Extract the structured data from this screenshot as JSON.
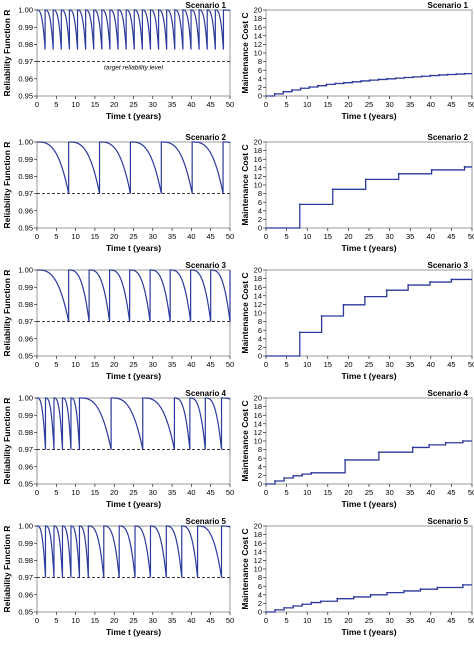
{
  "figure": {
    "reliability_ylabel": "Reliability Function R",
    "cost_ylabel": "Maintenance Cost  C",
    "xlabel": "Time t (years)",
    "annotation": "target reliability level",
    "line_color": "#2b3a9c"
  },
  "chart_data": [
    {
      "type": "line",
      "panel": "reliability",
      "title": "Scenario 1",
      "xlabel": "Time t (years)",
      "ylabel": "Reliability Function R",
      "xlim": [
        0,
        50
      ],
      "ylim": [
        0.95,
        1.0
      ],
      "xticks": [
        "0",
        "5",
        "10",
        "15",
        "20",
        "25",
        "30",
        "35",
        "40",
        "45",
        "50"
      ],
      "yticks": [
        "0.95",
        "0.96",
        "0.97",
        "0.98",
        "0.99",
        "1.00"
      ],
      "target": 0.97,
      "annotation": "target reliability level",
      "repair_times": [
        2.1,
        4.2,
        6.3,
        8.4,
        10.5,
        12.6,
        14.7,
        16.8,
        18.9,
        21.0,
        23.1,
        25.2,
        27.3,
        29.4,
        31.5,
        33.6,
        35.7,
        37.8,
        39.9,
        42.0,
        44.1,
        46.2,
        48.3
      ],
      "min_reliability": 0.977
    },
    {
      "type": "line",
      "panel": "cost",
      "title": "Scenario 1",
      "xlabel": "Time t (years)",
      "ylabel": "Maintenance Cost  C",
      "xlim": [
        0,
        50
      ],
      "ylim": [
        0,
        20
      ],
      "xticks": [
        "0",
        "5",
        "10",
        "15",
        "20",
        "25",
        "30",
        "35",
        "40",
        "45",
        "50"
      ],
      "yticks": [
        "0",
        "2",
        "4",
        "6",
        "8",
        "10",
        "12",
        "14",
        "16",
        "18",
        "20"
      ],
      "x": [
        2.1,
        4.2,
        6.3,
        8.4,
        10.5,
        12.6,
        14.7,
        16.8,
        18.9,
        21.0,
        23.1,
        25.2,
        27.3,
        29.4,
        31.5,
        33.6,
        35.7,
        37.8,
        39.9,
        42.0,
        44.1,
        46.2,
        48.3
      ],
      "y": [
        0.5,
        1.0,
        1.4,
        1.8,
        2.1,
        2.4,
        2.7,
        2.9,
        3.1,
        3.3,
        3.5,
        3.7,
        3.85,
        4.0,
        4.15,
        4.3,
        4.45,
        4.6,
        4.75,
        4.9,
        5.0,
        5.1,
        5.2
      ]
    },
    {
      "type": "line",
      "panel": "reliability",
      "title": "Scenario 2",
      "xlabel": "Time t (years)",
      "ylabel": "Reliability Function R",
      "xlim": [
        0,
        50
      ],
      "ylim": [
        0.95,
        1.0
      ],
      "xticks": [
        "0",
        "5",
        "10",
        "15",
        "20",
        "25",
        "30",
        "35",
        "40",
        "45",
        "50"
      ],
      "yticks": [
        "0.95",
        "0.96",
        "0.97",
        "0.98",
        "0.99",
        "1.00"
      ],
      "target": 0.97,
      "repair_times": [
        8.2,
        16.2,
        24.2,
        32.2,
        40.2,
        48.2
      ],
      "min_reliability": 0.97
    },
    {
      "type": "line",
      "panel": "cost",
      "title": "Scenario 2",
      "xlabel": "Time t (years)",
      "ylabel": "Maintenance Cost  C",
      "xlim": [
        0,
        50
      ],
      "ylim": [
        0,
        20
      ],
      "xticks": [
        "0",
        "5",
        "10",
        "15",
        "20",
        "25",
        "30",
        "35",
        "40",
        "45",
        "50"
      ],
      "yticks": [
        "0",
        "2",
        "4",
        "6",
        "8",
        "10",
        "12",
        "14",
        "16",
        "18",
        "20"
      ],
      "x": [
        8.2,
        16.2,
        24.2,
        32.2,
        40.2,
        48.2
      ],
      "y": [
        5.5,
        9.0,
        11.3,
        12.6,
        13.5,
        14.2
      ]
    },
    {
      "type": "line",
      "panel": "reliability",
      "title": "Scenario 3",
      "xlabel": "Time t (years)",
      "ylabel": "Reliability Function R",
      "xlim": [
        0,
        50
      ],
      "ylim": [
        0.95,
        1.0
      ],
      "xticks": [
        "0",
        "5",
        "10",
        "15",
        "20",
        "25",
        "30",
        "35",
        "40",
        "45",
        "50"
      ],
      "yticks": [
        "0.95",
        "0.96",
        "0.97",
        "0.98",
        "0.99",
        "1.00"
      ],
      "target": 0.97,
      "repair_times": [
        8.2,
        13.5,
        18.8,
        24.0,
        29.3,
        34.5,
        39.8,
        45.0,
        50.0
      ],
      "min_reliability": 0.97
    },
    {
      "type": "line",
      "panel": "cost",
      "title": "Scenario 3",
      "xlabel": "Time t (years)",
      "ylabel": "Maintenance Cost  C",
      "xlim": [
        0,
        50
      ],
      "ylim": [
        0,
        20
      ],
      "xticks": [
        "0",
        "5",
        "10",
        "15",
        "20",
        "25",
        "30",
        "35",
        "40",
        "45",
        "50"
      ],
      "yticks": [
        "0",
        "2",
        "4",
        "6",
        "8",
        "10",
        "12",
        "14",
        "16",
        "18",
        "20"
      ],
      "x": [
        8.2,
        13.5,
        18.8,
        24.0,
        29.3,
        34.5,
        39.8,
        45.0
      ],
      "y": [
        5.5,
        9.3,
        11.9,
        13.8,
        15.3,
        16.5,
        17.2,
        17.8
      ]
    },
    {
      "type": "line",
      "panel": "reliability",
      "title": "Scenario 4",
      "xlabel": "Time t (years)",
      "ylabel": "Reliability Function R",
      "xlim": [
        0,
        50
      ],
      "ylim": [
        0.95,
        1.0
      ],
      "xticks": [
        "0",
        "5",
        "10",
        "15",
        "20",
        "25",
        "30",
        "35",
        "40",
        "45",
        "50"
      ],
      "yticks": [
        "0.95",
        "0.96",
        "0.97",
        "0.98",
        "0.99",
        "1.00"
      ],
      "target": 0.97,
      "repair_times": [
        2.2,
        4.4,
        6.6,
        8.8,
        11.0,
        19.2,
        27.4,
        35.6,
        39.6,
        43.6,
        47.8
      ],
      "min_reliability": 0.97
    },
    {
      "type": "line",
      "panel": "cost",
      "title": "Scenario 4",
      "xlabel": "Time t (years)",
      "ylabel": "Maintenance Cost  C",
      "xlim": [
        0,
        50
      ],
      "ylim": [
        0,
        20
      ],
      "xticks": [
        "0",
        "5",
        "10",
        "15",
        "20",
        "25",
        "30",
        "35",
        "40",
        "45",
        "50"
      ],
      "yticks": [
        "0",
        "2",
        "4",
        "6",
        "8",
        "10",
        "12",
        "14",
        "16",
        "18",
        "20"
      ],
      "x": [
        2.2,
        4.4,
        6.6,
        8.8,
        11.0,
        19.2,
        27.4,
        35.6,
        39.6,
        43.6,
        47.8
      ],
      "y": [
        0.7,
        1.4,
        1.9,
        2.3,
        2.6,
        5.6,
        7.4,
        8.5,
        9.1,
        9.6,
        10.0
      ]
    },
    {
      "type": "line",
      "panel": "reliability",
      "title": "Scenario 5",
      "xlabel": "Time t (years)",
      "ylabel": "Reliability Function R",
      "xlim": [
        0,
        50
      ],
      "ylim": [
        0.95,
        1.0
      ],
      "xticks": [
        "0",
        "5",
        "10",
        "15",
        "20",
        "25",
        "30",
        "35",
        "40",
        "45",
        "50"
      ],
      "yticks": [
        "0.95",
        "0.96",
        "0.97",
        "0.98",
        "0.99",
        "1.00"
      ],
      "target": 0.97,
      "repair_times": [
        2.2,
        4.4,
        6.6,
        8.8,
        11.0,
        13.3,
        17.3,
        21.3,
        25.4,
        29.4,
        33.5,
        37.5,
        41.6,
        47.8
      ],
      "min_reliability": 0.97
    },
    {
      "type": "line",
      "panel": "cost",
      "title": "Scenario 5",
      "xlabel": "Time t (years)",
      "ylabel": "Maintenance Cost  C",
      "xlim": [
        0,
        50
      ],
      "ylim": [
        0,
        20
      ],
      "xticks": [
        "0",
        "5",
        "10",
        "15",
        "20",
        "25",
        "30",
        "35",
        "40",
        "45",
        "50"
      ],
      "yticks": [
        "0",
        "2",
        "4",
        "6",
        "8",
        "10",
        "12",
        "14",
        "16",
        "18",
        "20"
      ],
      "x": [
        2.2,
        4.4,
        6.6,
        8.8,
        11.0,
        13.3,
        17.3,
        21.3,
        25.4,
        29.4,
        33.5,
        37.5,
        41.6,
        47.8
      ],
      "y": [
        0.5,
        0.95,
        1.4,
        1.8,
        2.2,
        2.5,
        3.1,
        3.5,
        4.0,
        4.5,
        4.9,
        5.3,
        5.7,
        6.3
      ]
    }
  ]
}
